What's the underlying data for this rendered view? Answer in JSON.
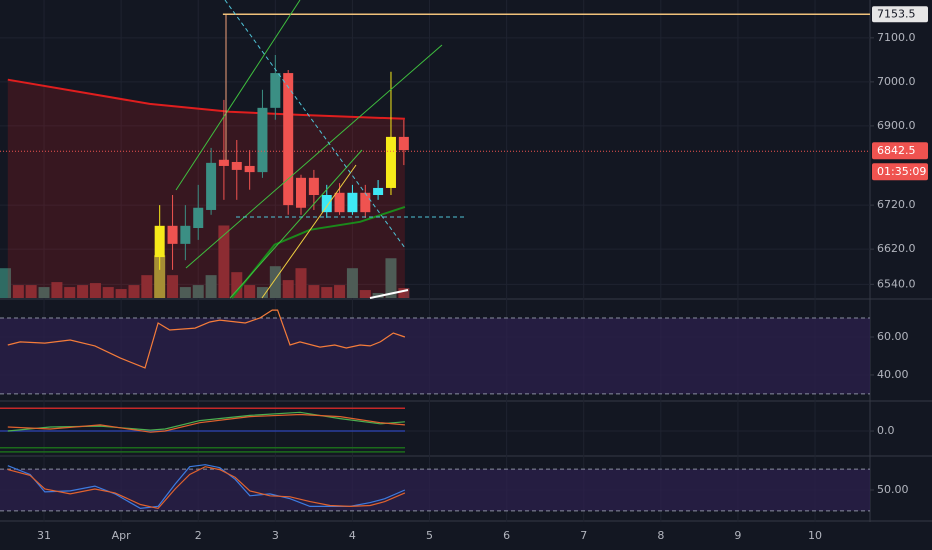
{
  "chart_data": [
    {
      "type": "candlestick",
      "xlim": [
        -0.571,
        10.713
      ],
      "xticks": [
        {
          "value": 0,
          "label": "31"
        },
        {
          "value": 1,
          "label": "Apr"
        },
        2,
        3,
        4,
        5,
        6,
        7,
        8,
        9,
        10
      ],
      "ylim": [
        6509,
        7186
      ],
      "yticks": [
        {
          "value": 7100,
          "label": "7100.0"
        },
        {
          "value": 7000,
          "label": "7000.0"
        },
        {
          "value": 6900,
          "label": "6900.0"
        },
        {
          "value": 6720,
          "label": "6720.0"
        },
        {
          "value": 6620,
          "label": "6620.0"
        },
        {
          "value": 6540,
          "label": "6540.0"
        }
      ],
      "x": [
        1.5,
        1.667,
        1.833,
        2,
        2.167,
        2.333,
        2.5,
        2.667,
        2.833,
        3,
        3.167,
        3.333,
        3.5,
        3.667,
        3.833,
        4,
        4.167,
        4.333,
        4.5,
        4.667
      ],
      "open": [
        6602,
        6673,
        6632,
        6668,
        6709,
        6823,
        6818,
        6809,
        6795,
        6941,
        7020,
        6782,
        6782,
        6704,
        6748,
        6704,
        6748,
        6743,
        6759,
        6875
      ],
      "high": [
        6720,
        6743,
        6720,
        6766,
        6850,
        6959,
        6868,
        6845,
        6982,
        7061,
        7027,
        6789,
        6800,
        6766,
        6770,
        6766,
        6766,
        6777,
        7023,
        6914
      ],
      "low": [
        6573,
        6573,
        6595,
        6641,
        6698,
        6732,
        6732,
        6755,
        6782,
        6914,
        6698,
        6698,
        6709,
        6691,
        6698,
        6698,
        6691,
        6732,
        6743,
        6811
      ],
      "close": [
        6673,
        6632,
        6673,
        6714,
        6816,
        6809,
        6800,
        6795,
        6941,
        7020,
        6720,
        6714,
        6743,
        6743,
        6704,
        6748,
        6704,
        6759,
        6875,
        6845
      ],
      "colors": [
        "#f7ea1a",
        "#ef5350",
        "#3b8f84",
        "#3b8f84",
        "#3b8f84",
        "#ef5350",
        "#ef5350",
        "#ef5350",
        "#3b8f84",
        "#3b8f84",
        "#ef5350",
        "#ef5350",
        "#ef5350",
        "#3ee8f5",
        "#ef5350",
        "#3ee8f5",
        "#ef5350",
        "#3ee8f5",
        "#f7ea1a",
        "#ef5350"
      ],
      "volume": {
        "ylim": [
          0,
          300
        ],
        "x": [
          -0.5,
          -0.333,
          -0.167,
          0,
          0.167,
          0.333,
          0.5,
          0.667,
          0.833,
          1,
          1.167,
          1.333,
          1.5,
          1.667,
          1.833,
          2,
          2.167,
          2.333,
          2.5,
          2.667,
          2.833,
          3,
          3.167,
          3.333,
          3.5,
          3.667,
          3.833,
          4,
          4.167,
          4.333,
          4.5,
          4.667
        ],
        "values": [
          30,
          13,
          13,
          11,
          16,
          11,
          13,
          15,
          11,
          9,
          13,
          23,
          43,
          23,
          11,
          13,
          23,
          73,
          26,
          13,
          11,
          32,
          18,
          30,
          13,
          11,
          13,
          30,
          8,
          5,
          40,
          10
        ],
        "colors": [
          "#2f6b63",
          "#7b3038",
          "#7b3038",
          "#2f6b63",
          "#7b3038",
          "#7b3038",
          "#7b3038",
          "#7b3038",
          "#7b3038",
          "#7b3038",
          "#7b3038",
          "#7b3038",
          "#9aa83a",
          "#7b3038",
          "#2f6b63",
          "#2f6b63",
          "#2f6b63",
          "#7b3038",
          "#7b3038",
          "#7b3038",
          "#2f6b63",
          "#2f6b63",
          "#7b3038",
          "#7b3038",
          "#7b3038",
          "#7b3038",
          "#7b3038",
          "#2f6b63",
          "#7b3038",
          "#2f6b63",
          "#2f6b63",
          "#7b3038"
        ]
      },
      "lines": [
        {
          "color": "#e01e1e",
          "fill": true,
          "x": [
            -0.47,
            1.37,
            2.41,
            3.32,
            4.68
          ],
          "values": [
            7005,
            6950,
            6932,
            6925,
            6916
          ]
        },
        {
          "color": "#1b8a1b",
          "fill": false,
          "x": [
            2.44,
            2.99,
            3.45,
            4.1,
            4.68
          ],
          "values": [
            6509,
            6630,
            6664,
            6682,
            6716
          ]
        }
      ],
      "levels": [
        {
          "value": 7153.5,
          "color": "#f0c27b"
        }
      ],
      "last_price": 6842.5,
      "countdown": "01:35:09"
    },
    {
      "type": "line",
      "ylim": [
        26.8,
        79.5
      ],
      "yticks": [
        {
          "value": 60,
          "label": "60.00"
        },
        {
          "value": 40,
          "label": "40.00"
        }
      ],
      "band": [
        30,
        70
      ],
      "series": [
        {
          "color": "#f57c3a",
          "x": [
            -0.47,
            -0.31,
            0.01,
            0.34,
            0.66,
            0.99,
            1.31,
            1.48,
            1.63,
            1.96,
            2.15,
            2.28,
            2.61,
            2.8,
            2.96,
            3.03,
            3.19,
            3.32,
            3.58,
            3.77,
            3.92,
            4.1,
            4.23,
            4.36,
            4.53,
            4.68
          ],
          "values": [
            55.8,
            57.4,
            56.8,
            58.4,
            55.3,
            48.9,
            43.7,
            67.4,
            63.7,
            64.7,
            67.9,
            68.9,
            67.4,
            70,
            74.2,
            74.2,
            55.8,
            57.4,
            54.7,
            55.8,
            54.2,
            55.8,
            55.3,
            57.4,
            62.1,
            60
          ]
        }
      ]
    },
    {
      "type": "line",
      "ylim": [
        -1.06,
        1.24
      ],
      "yticks": [
        {
          "value": 0,
          "label": "0.0"
        }
      ],
      "levels": [
        {
          "value": 1.01,
          "color": "#c62828"
        },
        {
          "value": 0,
          "color": "#2a3f9e"
        },
        {
          "value": -0.74,
          "color": "#1b6b1b"
        },
        {
          "value": -0.92,
          "color": "#1b6b1b"
        }
      ],
      "series": [
        {
          "color": "#4caf50",
          "x": [
            -0.47,
            0.08,
            0.73,
            1.38,
            1.57,
            2.02,
            2.67,
            3.32,
            3.84,
            4.36,
            4.68
          ],
          "values": [
            0,
            0.18,
            0.22,
            0.04,
            0.09,
            0.46,
            0.69,
            0.83,
            0.55,
            0.32,
            0.41
          ]
        },
        {
          "color": "#e0622e",
          "x": [
            -0.47,
            0.08,
            0.73,
            1.38,
            1.57,
            2.02,
            2.67,
            3.32,
            3.84,
            4.36,
            4.68
          ],
          "values": [
            0.18,
            0.09,
            0.27,
            -0.05,
            0,
            0.37,
            0.64,
            0.73,
            0.64,
            0.37,
            0.27
          ]
        }
      ]
    },
    {
      "type": "line",
      "ylim": [
        6.8,
        96
      ],
      "yticks": [
        {
          "value": 50,
          "label": "50.00"
        }
      ],
      "band": [
        20,
        80
      ],
      "series": [
        {
          "color": "#3d7be0",
          "x": [
            -0.47,
            -0.18,
            0.01,
            0.34,
            0.66,
            0.92,
            1.25,
            1.48,
            1.7,
            1.89,
            2.09,
            2.28,
            2.48,
            2.67,
            2.93,
            3.19,
            3.45,
            3.71,
            3.97,
            4.23,
            4.42,
            4.68
          ],
          "values": [
            84.9,
            72.3,
            47.2,
            48.6,
            55.6,
            44.4,
            23.5,
            26.3,
            58.4,
            83.5,
            86.3,
            82.1,
            65.3,
            41.6,
            44.4,
            37.4,
            26.3,
            26.3,
            26.3,
            31.9,
            37.4,
            50
          ]
        },
        {
          "color": "#e0622e",
          "x": [
            -0.47,
            -0.18,
            0.01,
            0.34,
            0.66,
            0.92,
            1.25,
            1.48,
            1.7,
            1.89,
            2.09,
            2.28,
            2.48,
            2.67,
            2.93,
            3.19,
            3.45,
            3.71,
            3.97,
            4.23,
            4.42,
            4.68
          ],
          "values": [
            79.3,
            70.9,
            51.4,
            44.4,
            51.4,
            45.8,
            29.1,
            23.5,
            51.4,
            72.3,
            83.5,
            79.3,
            68.1,
            48.6,
            41.6,
            40.2,
            33.3,
            27.7,
            26.3,
            27.7,
            33.3,
            45.8
          ]
        }
      ]
    }
  ]
}
